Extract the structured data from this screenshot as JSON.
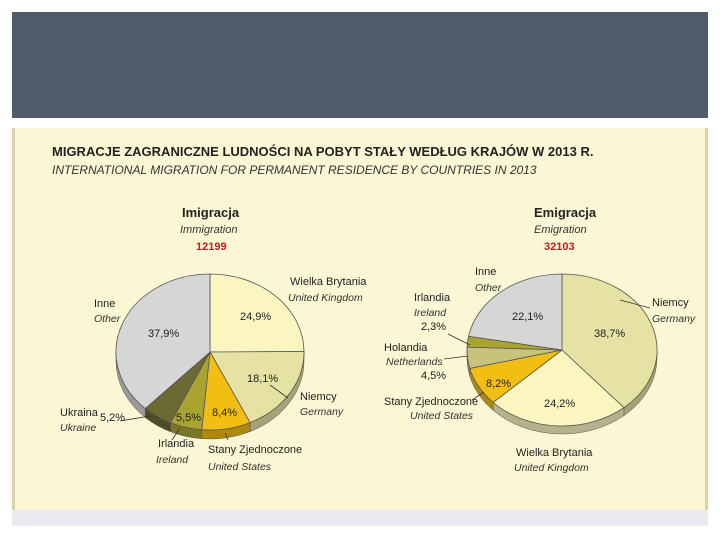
{
  "title_pl": "MIGRACJE ZAGRANICZNE LUDNOŚCI NA POBYT STAŁY WEDŁUG KRAJÓW W 2013 R.",
  "title_en": "INTERNATIONAL MIGRATION FOR PERMANENT RESIDENCE BY COUNTRIES IN 2013",
  "chart_data": [
    {
      "type": "pie",
      "title": "Imigracja",
      "subtitle": "Immigration",
      "total": "12199",
      "slices": [
        {
          "label_pl": "Wielka Brytania",
          "label_en": "United Kingdom",
          "value": 24.9,
          "value_label": "24,9%",
          "color": "#fbf6bf"
        },
        {
          "label_pl": "Niemcy",
          "label_en": "Germany",
          "value": 18.1,
          "value_label": "18,1%",
          "color": "#e5e2a3"
        },
        {
          "label_pl": "Stany Zjednoczone",
          "label_en": "United States",
          "value": 8.4,
          "value_label": "8,4%",
          "color": "#f2be13"
        },
        {
          "label_pl": "Irlandia",
          "label_en": "Ireland",
          "value": 5.5,
          "value_label": "5,5%",
          "color": "#a9a42f"
        },
        {
          "label_pl": "Ukraina",
          "label_en": "Ukraine",
          "value": 5.2,
          "value_label": "5,2%",
          "color": "#6b6a33"
        },
        {
          "label_pl": "Inne",
          "label_en": "Other",
          "value": 37.9,
          "value_label": "37,9%",
          "color": "#d6d6d6"
        }
      ]
    },
    {
      "type": "pie",
      "title": "Emigracja",
      "subtitle": "Emigration",
      "total": "32103",
      "slices": [
        {
          "label_pl": "Niemcy",
          "label_en": "Germany",
          "value": 38.7,
          "value_label": "38,7%",
          "color": "#e5e2a3"
        },
        {
          "label_pl": "Wielka Brytania",
          "label_en": "United Kingdom",
          "value": 24.2,
          "value_label": "24,2%",
          "color": "#fbf6bf"
        },
        {
          "label_pl": "Stany Zjednoczone",
          "label_en": "United States",
          "value": 8.2,
          "value_label": "8,2%",
          "color": "#f2be13"
        },
        {
          "label_pl": "Holandia",
          "label_en": "Netherlands",
          "value": 4.5,
          "value_label": "4,5%",
          "color": "#c7c37a"
        },
        {
          "label_pl": "Irlandia",
          "label_en": "Ireland",
          "value": 2.3,
          "value_label": "2,3%",
          "color": "#a9a42f"
        },
        {
          "label_pl": "Inne",
          "label_en": "Other",
          "value": 22.1,
          "value_label": "22,1%",
          "color": "#d6d6d6"
        }
      ]
    }
  ]
}
